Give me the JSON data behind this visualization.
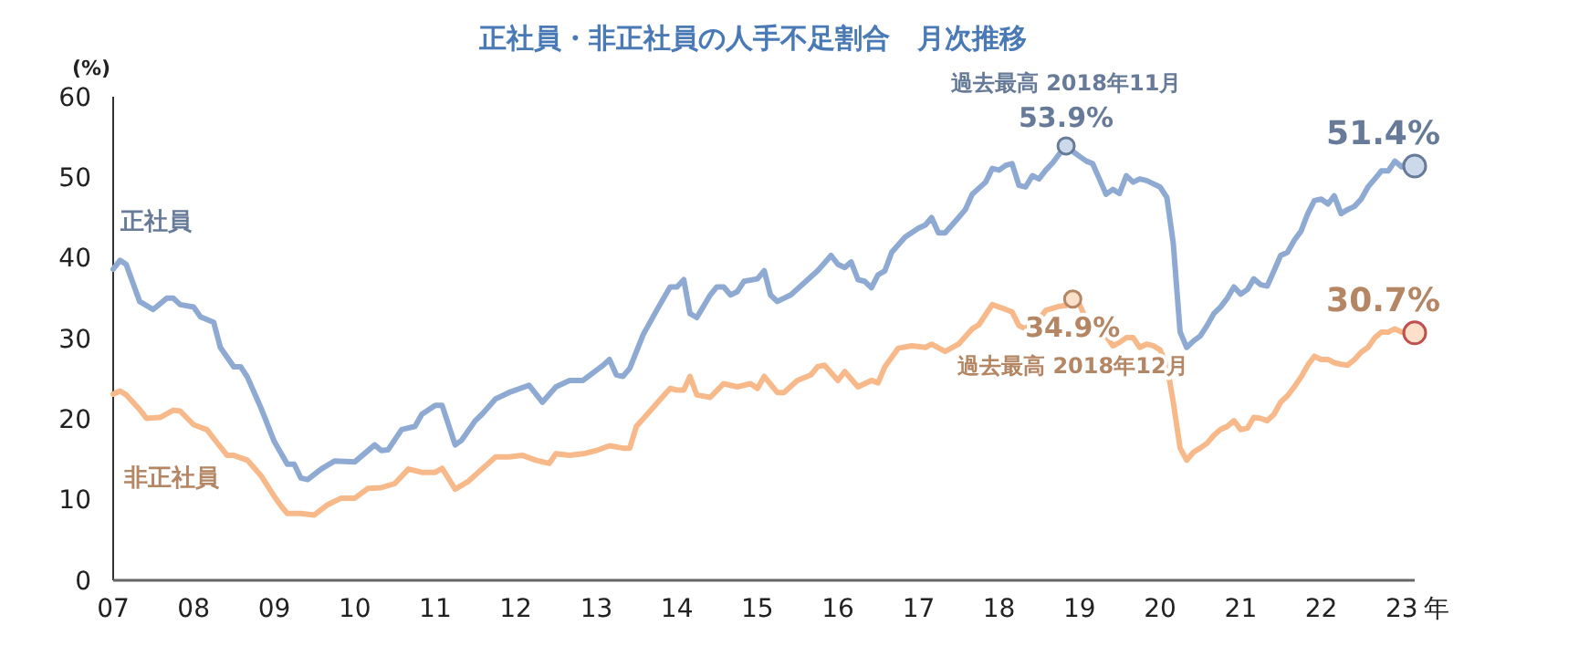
{
  "chart_data": {
    "type": "line",
    "title": "正社員・非正社員の人手不足割合　月次推移",
    "ylabel": "(%)",
    "xlabel": "年",
    "xlim": [
      "2007-01",
      "2023-03"
    ],
    "xticks": [
      {
        "value": "2007-01",
        "label": "07"
      },
      {
        "value": "2008-01",
        "label": "08"
      },
      {
        "value": "2009-01",
        "label": "09"
      },
      {
        "value": "2010-01",
        "label": "10"
      },
      {
        "value": "2011-01",
        "label": "11"
      },
      {
        "value": "2012-01",
        "label": "12"
      },
      {
        "value": "2013-01",
        "label": "13"
      },
      {
        "value": "2014-01",
        "label": "14"
      },
      {
        "value": "2015-01",
        "label": "15"
      },
      {
        "value": "2016-01",
        "label": "16"
      },
      {
        "value": "2017-01",
        "label": "17"
      },
      {
        "value": "2018-01",
        "label": "18"
      },
      {
        "value": "2019-01",
        "label": "19"
      },
      {
        "value": "2020-01",
        "label": "20"
      },
      {
        "value": "2021-01",
        "label": "21"
      },
      {
        "value": "2022-01",
        "label": "22"
      },
      {
        "value": "2023-01",
        "label": "23"
      }
    ],
    "ylim": [
      0,
      60
    ],
    "yticks": [
      0,
      10,
      20,
      30,
      40,
      50,
      60
    ],
    "grid": false,
    "legend": false,
    "marker": "none",
    "line_style": "solid",
    "series": [
      {
        "name": "正社員",
        "color": "#8eaad3",
        "x": [
          "2007-01",
          "2007-02",
          "2007-03",
          "2007-05",
          "2007-07",
          "2007-09",
          "2007-10",
          "2007-11",
          "2008-01",
          "2008-02",
          "2008-04",
          "2008-05",
          "2008-07",
          "2008-08",
          "2008-09",
          "2008-11",
          "2009-01",
          "2009-03",
          "2009-04",
          "2009-05",
          "2009-06",
          "2009-08",
          "2009-10",
          "2010-01",
          "2010-04",
          "2010-05",
          "2010-06",
          "2010-08",
          "2010-10",
          "2010-11",
          "2011-01",
          "2011-02",
          "2011-04",
          "2011-05",
          "2011-07",
          "2011-08",
          "2011-10",
          "2011-12",
          "2012-03",
          "2012-05",
          "2012-07",
          "2012-09",
          "2012-11",
          "2013-02",
          "2013-03",
          "2013-04",
          "2013-05",
          "2013-06",
          "2013-08",
          "2013-10",
          "2013-12",
          "2014-01",
          "2014-02",
          "2014-03",
          "2014-04",
          "2014-06",
          "2014-07",
          "2014-08",
          "2014-09",
          "2014-10",
          "2014-11",
          "2015-01",
          "2015-02",
          "2015-03",
          "2015-04",
          "2015-06",
          "2015-08",
          "2015-10",
          "2015-12",
          "2016-01",
          "2016-02",
          "2016-03",
          "2016-04",
          "2016-05",
          "2016-06",
          "2016-07",
          "2016-08",
          "2016-09",
          "2016-11",
          "2017-01",
          "2017-02",
          "2017-03",
          "2017-04",
          "2017-05",
          "2017-07",
          "2017-08",
          "2017-09",
          "2017-11",
          "2017-12",
          "2018-01",
          "2018-02",
          "2018-03",
          "2018-04",
          "2018-05",
          "2018-06",
          "2018-07",
          "2018-08",
          "2018-09",
          "2018-10",
          "2018-11",
          "2018-12",
          "2019-01",
          "2019-02",
          "2019-03",
          "2019-04",
          "2019-05",
          "2019-06",
          "2019-07",
          "2019-08",
          "2019-09",
          "2019-10",
          "2019-11",
          "2019-12",
          "2020-01",
          "2020-02",
          "2020-03",
          "2020-04",
          "2020-05",
          "2020-06",
          "2020-07",
          "2020-08",
          "2020-09",
          "2020-10",
          "2020-11",
          "2020-12",
          "2021-01",
          "2021-02",
          "2021-03",
          "2021-04",
          "2021-05",
          "2021-06",
          "2021-07",
          "2021-08",
          "2021-09",
          "2021-10",
          "2021-11",
          "2021-12",
          "2022-01",
          "2022-02",
          "2022-03",
          "2022-04",
          "2022-05",
          "2022-06",
          "2022-07",
          "2022-08",
          "2022-09",
          "2022-10",
          "2022-11",
          "2022-12",
          "2023-01",
          "2023-02",
          "2023-03"
        ],
        "values": [
          38.6,
          39.7,
          39.2,
          34.6,
          33.6,
          35.0,
          35.0,
          34.2,
          33.9,
          32.7,
          32.0,
          28.9,
          26.5,
          26.5,
          25.2,
          21.4,
          17.2,
          14.4,
          14.4,
          12.7,
          12.5,
          13.8,
          14.8,
          14.7,
          16.8,
          16.1,
          16.2,
          18.7,
          19.1,
          20.6,
          21.7,
          21.7,
          16.8,
          17.4,
          19.8,
          20.6,
          22.5,
          23.3,
          24.2,
          22.1,
          24.0,
          24.8,
          24.8,
          26.7,
          27.4,
          25.5,
          25.3,
          26.3,
          30.5,
          33.5,
          36.4,
          36.4,
          37.3,
          33.1,
          32.6,
          35.4,
          36.4,
          36.4,
          35.4,
          35.8,
          37.1,
          37.4,
          38.4,
          35.4,
          34.6,
          35.4,
          36.9,
          38.4,
          40.3,
          39.2,
          38.8,
          39.5,
          37.3,
          37.1,
          36.3,
          37.9,
          38.4,
          40.7,
          42.6,
          43.7,
          44.1,
          45.0,
          43.1,
          43.1,
          45.0,
          46.0,
          47.9,
          49.4,
          51.1,
          50.9,
          51.5,
          51.7,
          49.0,
          48.8,
          50.2,
          49.8,
          50.9,
          51.8,
          52.9,
          53.9,
          53.2,
          52.6,
          52.0,
          51.7,
          49.8,
          47.9,
          48.5,
          48.0,
          50.2,
          49.4,
          49.8,
          49.6,
          49.2,
          48.8,
          47.5,
          41.8,
          30.8,
          28.9,
          29.7,
          30.3,
          31.6,
          33.1,
          33.9,
          35.0,
          36.4,
          35.5,
          36.1,
          37.4,
          36.7,
          36.5,
          38.4,
          40.3,
          40.7,
          42.2,
          43.3,
          45.5,
          47.1,
          47.3,
          46.7,
          47.7,
          45.5,
          46.0,
          46.4,
          47.3,
          48.8,
          49.8,
          50.8,
          50.8,
          52.0,
          51.3,
          52.0,
          51.4
        ]
      },
      {
        "name": "非正社員",
        "color": "#f8b98a",
        "x": [
          "2007-01",
          "2007-02",
          "2007-03",
          "2007-05",
          "2007-06",
          "2007-08",
          "2007-10",
          "2007-11",
          "2008-01",
          "2008-03",
          "2008-04",
          "2008-06",
          "2008-07",
          "2008-09",
          "2008-11",
          "2009-01",
          "2009-02",
          "2009-03",
          "2009-05",
          "2009-07",
          "2009-09",
          "2009-11",
          "2010-01",
          "2010-03",
          "2010-05",
          "2010-07",
          "2010-09",
          "2010-11",
          "2011-01",
          "2011-02",
          "2011-04",
          "2011-06",
          "2011-08",
          "2011-10",
          "2011-12",
          "2012-02",
          "2012-04",
          "2012-06",
          "2012-07",
          "2012-09",
          "2012-11",
          "2013-01",
          "2013-03",
          "2013-05",
          "2013-06",
          "2013-07",
          "2013-09",
          "2013-11",
          "2013-12",
          "2014-01",
          "2014-02",
          "2014-03",
          "2014-04",
          "2014-06",
          "2014-08",
          "2014-10",
          "2014-12",
          "2015-01",
          "2015-02",
          "2015-04",
          "2015-05",
          "2015-07",
          "2015-09",
          "2015-10",
          "2015-11",
          "2016-01",
          "2016-02",
          "2016-04",
          "2016-06",
          "2016-07",
          "2016-08",
          "2016-10",
          "2016-12",
          "2017-02",
          "2017-03",
          "2017-05",
          "2017-07",
          "2017-09",
          "2017-10",
          "2017-12",
          "2018-02",
          "2018-03",
          "2018-04",
          "2018-05",
          "2018-06",
          "2018-07",
          "2018-08",
          "2018-10",
          "2018-11",
          "2018-12",
          "2019-01",
          "2019-02",
          "2019-03",
          "2019-04",
          "2019-05",
          "2019-06",
          "2019-07",
          "2019-08",
          "2019-09",
          "2019-10",
          "2019-11",
          "2019-12",
          "2020-01",
          "2020-02",
          "2020-03",
          "2020-04",
          "2020-05",
          "2020-06",
          "2020-07",
          "2020-08",
          "2020-09",
          "2020-10",
          "2020-11",
          "2020-12",
          "2021-01",
          "2021-02",
          "2021-03",
          "2021-04",
          "2021-05",
          "2021-06",
          "2021-07",
          "2021-08",
          "2021-09",
          "2021-10",
          "2021-11",
          "2021-12",
          "2022-01",
          "2022-02",
          "2022-03",
          "2022-04",
          "2022-05",
          "2022-06",
          "2022-07",
          "2022-08",
          "2022-09",
          "2022-10",
          "2022-11",
          "2022-12",
          "2023-01",
          "2023-02",
          "2023-03"
        ],
        "values": [
          23.1,
          23.5,
          23.0,
          21.2,
          20.1,
          20.2,
          21.1,
          21.0,
          19.3,
          18.7,
          17.6,
          15.5,
          15.5,
          14.9,
          13.0,
          10.4,
          9.2,
          8.3,
          8.3,
          8.1,
          9.4,
          10.2,
          10.2,
          11.4,
          11.5,
          12.0,
          13.8,
          13.4,
          13.4,
          13.9,
          11.3,
          12.3,
          13.8,
          15.3,
          15.3,
          15.5,
          14.9,
          14.5,
          15.7,
          15.5,
          15.7,
          16.1,
          16.7,
          16.4,
          16.4,
          19.1,
          21.0,
          22.9,
          23.8,
          23.6,
          23.6,
          25.3,
          23.0,
          22.7,
          24.4,
          24.0,
          24.4,
          23.8,
          25.3,
          23.3,
          23.3,
          24.8,
          25.5,
          26.5,
          26.7,
          24.8,
          25.9,
          24.0,
          24.8,
          24.5,
          26.5,
          28.8,
          29.1,
          28.9,
          29.3,
          28.4,
          29.3,
          31.2,
          31.7,
          34.2,
          33.6,
          33.3,
          31.6,
          31.2,
          32.1,
          32.4,
          33.5,
          34.0,
          34.1,
          34.9,
          34.2,
          32.3,
          32.0,
          31.4,
          30.3,
          29.1,
          29.5,
          30.1,
          30.1,
          28.9,
          29.3,
          29.1,
          28.6,
          26.7,
          22.1,
          16.4,
          14.9,
          15.9,
          16.4,
          17.0,
          18.0,
          18.7,
          19.1,
          19.8,
          18.7,
          18.9,
          20.2,
          20.1,
          19.8,
          20.6,
          22.1,
          22.9,
          24.0,
          25.2,
          26.7,
          27.8,
          27.4,
          27.4,
          27.0,
          26.8,
          26.7,
          27.4,
          28.3,
          28.9,
          30.1,
          30.8,
          30.8,
          31.2,
          30.8,
          30.6,
          30.7
        ]
      }
    ],
    "annotations": [
      {
        "text": "過去最高 2018年11月",
        "x": "2018-11",
        "y": 53.9
      },
      {
        "text": "53.9%",
        "x": "2018-11",
        "y": 53.9
      },
      {
        "text": "34.9%",
        "x": "2018-12",
        "y": 34.9
      },
      {
        "text": "過去最高 2018年12月",
        "x": "2018-12",
        "y": 34.9
      },
      {
        "text": "51.4%",
        "x": "2023-03",
        "y": 51.4
      },
      {
        "text": "30.7%",
        "x": "2023-03",
        "y": 30.7
      }
    ]
  }
}
